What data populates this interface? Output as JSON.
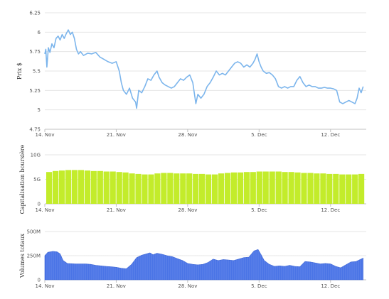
{
  "chart_data": [
    {
      "type": "line",
      "ylabel": "Prix $",
      "yticks": [
        "4.75",
        "5",
        "5.25",
        "5.5",
        "5.75",
        "6",
        "6.25"
      ],
      "ylim": [
        4.75,
        6.25
      ],
      "xticks": [
        "14. Nov",
        "21. Nov",
        "28. Nov",
        "5. Dec",
        "12. Dec"
      ],
      "xlim": [
        0,
        31.5
      ],
      "grid": "horizontal",
      "color": "#7cb5ec",
      "points": [
        [
          0,
          5.72
        ],
        [
          0.1,
          5.78
        ],
        [
          0.2,
          5.55
        ],
        [
          0.35,
          5.8
        ],
        [
          0.5,
          5.74
        ],
        [
          0.7,
          5.85
        ],
        [
          0.9,
          5.8
        ],
        [
          1.1,
          5.92
        ],
        [
          1.3,
          5.95
        ],
        [
          1.5,
          5.9
        ],
        [
          1.7,
          5.97
        ],
        [
          1.9,
          5.92
        ],
        [
          2.1,
          5.98
        ],
        [
          2.3,
          6.03
        ],
        [
          2.5,
          5.97
        ],
        [
          2.7,
          6.0
        ],
        [
          2.9,
          5.92
        ],
        [
          3.1,
          5.78
        ],
        [
          3.3,
          5.72
        ],
        [
          3.5,
          5.75
        ],
        [
          3.8,
          5.7
        ],
        [
          4.2,
          5.73
        ],
        [
          4.6,
          5.72
        ],
        [
          5.0,
          5.74
        ],
        [
          5.4,
          5.68
        ],
        [
          5.8,
          5.65
        ],
        [
          6.2,
          5.62
        ],
        [
          6.6,
          5.6
        ],
        [
          7.0,
          5.62
        ],
        [
          7.3,
          5.5
        ],
        [
          7.5,
          5.35
        ],
        [
          7.7,
          5.25
        ],
        [
          8.0,
          5.2
        ],
        [
          8.3,
          5.28
        ],
        [
          8.6,
          5.15
        ],
        [
          8.9,
          5.1
        ],
        [
          9.0,
          5.02
        ],
        [
          9.2,
          5.25
        ],
        [
          9.5,
          5.22
        ],
        [
          9.8,
          5.3
        ],
        [
          10.1,
          5.4
        ],
        [
          10.4,
          5.38
        ],
        [
          10.7,
          5.45
        ],
        [
          11.0,
          5.5
        ],
        [
          11.2,
          5.42
        ],
        [
          11.5,
          5.35
        ],
        [
          11.8,
          5.32
        ],
        [
          12.1,
          5.3
        ],
        [
          12.4,
          5.28
        ],
        [
          12.7,
          5.3
        ],
        [
          13.0,
          5.35
        ],
        [
          13.3,
          5.4
        ],
        [
          13.6,
          5.38
        ],
        [
          13.9,
          5.42
        ],
        [
          14.2,
          5.45
        ],
        [
          14.5,
          5.35
        ],
        [
          14.8,
          5.08
        ],
        [
          15.0,
          5.2
        ],
        [
          15.3,
          5.15
        ],
        [
          15.6,
          5.2
        ],
        [
          15.9,
          5.3
        ],
        [
          16.2,
          5.35
        ],
        [
          16.5,
          5.42
        ],
        [
          16.8,
          5.5
        ],
        [
          17.1,
          5.45
        ],
        [
          17.4,
          5.47
        ],
        [
          17.7,
          5.45
        ],
        [
          18.0,
          5.5
        ],
        [
          18.3,
          5.55
        ],
        [
          18.6,
          5.6
        ],
        [
          18.9,
          5.62
        ],
        [
          19.2,
          5.6
        ],
        [
          19.5,
          5.55
        ],
        [
          19.8,
          5.58
        ],
        [
          20.1,
          5.55
        ],
        [
          20.4,
          5.6
        ],
        [
          20.6,
          5.65
        ],
        [
          20.8,
          5.72
        ],
        [
          21.0,
          5.62
        ],
        [
          21.2,
          5.55
        ],
        [
          21.4,
          5.5
        ],
        [
          21.7,
          5.47
        ],
        [
          22.0,
          5.48
        ],
        [
          22.3,
          5.45
        ],
        [
          22.6,
          5.4
        ],
        [
          22.9,
          5.3
        ],
        [
          23.2,
          5.28
        ],
        [
          23.5,
          5.3
        ],
        [
          23.8,
          5.28
        ],
        [
          24.1,
          5.3
        ],
        [
          24.4,
          5.3
        ],
        [
          24.7,
          5.38
        ],
        [
          25.0,
          5.43
        ],
        [
          25.3,
          5.35
        ],
        [
          25.6,
          5.3
        ],
        [
          25.9,
          5.32
        ],
        [
          26.2,
          5.3
        ],
        [
          26.5,
          5.3
        ],
        [
          26.8,
          5.28
        ],
        [
          27.1,
          5.28
        ],
        [
          27.4,
          5.29
        ],
        [
          27.7,
          5.28
        ],
        [
          28.0,
          5.28
        ],
        [
          28.3,
          5.27
        ],
        [
          28.6,
          5.25
        ],
        [
          28.9,
          5.1
        ],
        [
          29.2,
          5.08
        ],
        [
          29.5,
          5.1
        ],
        [
          29.8,
          5.12
        ],
        [
          30.1,
          5.1
        ],
        [
          30.4,
          5.08
        ],
        [
          30.6,
          5.15
        ],
        [
          30.8,
          5.28
        ],
        [
          31.0,
          5.22
        ],
        [
          31.2,
          5.3
        ]
      ]
    },
    {
      "type": "bar",
      "ylabel": "Capitalisation boursière",
      "yticks": [
        "0",
        "5G",
        "10G"
      ],
      "ylim": [
        0,
        10
      ],
      "xticks": [
        "14. Nov",
        "21. Nov",
        "28. Nov",
        "5. Dec",
        "12. Dec"
      ],
      "xlim": [
        0,
        31.5
      ],
      "grid": "horizontal",
      "color": "#c3ec2b",
      "values": [
        6.5,
        6.7,
        6.8,
        6.9,
        6.9,
        6.9,
        6.8,
        6.7,
        6.7,
        6.6,
        6.6,
        6.5,
        6.4,
        6.2,
        6.1,
        6.0,
        6.0,
        6.2,
        6.3,
        6.3,
        6.2,
        6.2,
        6.2,
        6.1,
        6.1,
        6.0,
        6.0,
        6.2,
        6.3,
        6.4,
        6.4,
        6.5,
        6.5,
        6.6,
        6.6,
        6.6,
        6.6,
        6.5,
        6.5,
        6.4,
        6.3,
        6.3,
        6.2,
        6.2,
        6.1,
        6.1,
        6.0,
        6.0,
        6.0,
        6.1
      ]
    },
    {
      "type": "area",
      "ylabel": "Volumes totaux",
      "yticks": [
        "0",
        "250M",
        "500M"
      ],
      "ylim": [
        0,
        500
      ],
      "xticks": [
        "14. Nov",
        "21. Nov",
        "28. Nov",
        "5. Dec",
        "12. Dec"
      ],
      "xlim": [
        0,
        31.5
      ],
      "grid": "horizontal",
      "color": "#4a74e6",
      "points": [
        [
          0,
          250
        ],
        [
          0.3,
          285
        ],
        [
          0.8,
          295
        ],
        [
          1.2,
          290
        ],
        [
          1.5,
          270
        ],
        [
          1.8,
          200
        ],
        [
          2.2,
          170
        ],
        [
          3.0,
          165
        ],
        [
          4.0,
          165
        ],
        [
          4.5,
          160
        ],
        [
          5.0,
          150
        ],
        [
          5.5,
          145
        ],
        [
          6.0,
          140
        ],
        [
          6.5,
          135
        ],
        [
          7.0,
          130
        ],
        [
          7.5,
          120
        ],
        [
          8.0,
          115
        ],
        [
          8.5,
          160
        ],
        [
          9.0,
          230
        ],
        [
          9.5,
          255
        ],
        [
          10.0,
          270
        ],
        [
          10.3,
          280
        ],
        [
          10.6,
          260
        ],
        [
          11.0,
          275
        ],
        [
          11.5,
          265
        ],
        [
          12.0,
          250
        ],
        [
          12.5,
          240
        ],
        [
          13.0,
          220
        ],
        [
          13.5,
          200
        ],
        [
          14.0,
          170
        ],
        [
          14.5,
          160
        ],
        [
          15.0,
          155
        ],
        [
          15.5,
          160
        ],
        [
          16.0,
          180
        ],
        [
          16.5,
          215
        ],
        [
          17.0,
          200
        ],
        [
          17.5,
          210
        ],
        [
          18.0,
          205
        ],
        [
          18.5,
          200
        ],
        [
          19.0,
          215
        ],
        [
          19.5,
          230
        ],
        [
          20.0,
          235
        ],
        [
          20.5,
          300
        ],
        [
          20.9,
          315
        ],
        [
          21.2,
          260
        ],
        [
          21.5,
          200
        ],
        [
          22.0,
          160
        ],
        [
          22.5,
          140
        ],
        [
          23.0,
          145
        ],
        [
          23.5,
          140
        ],
        [
          24.0,
          150
        ],
        [
          24.5,
          140
        ],
        [
          25.0,
          135
        ],
        [
          25.5,
          190
        ],
        [
          26.0,
          185
        ],
        [
          26.5,
          175
        ],
        [
          27.0,
          165
        ],
        [
          27.5,
          170
        ],
        [
          28.0,
          165
        ],
        [
          28.5,
          140
        ],
        [
          29.0,
          125
        ],
        [
          29.5,
          155
        ],
        [
          30.0,
          185
        ],
        [
          30.5,
          190
        ],
        [
          31.0,
          215
        ],
        [
          31.2,
          225
        ]
      ]
    }
  ]
}
